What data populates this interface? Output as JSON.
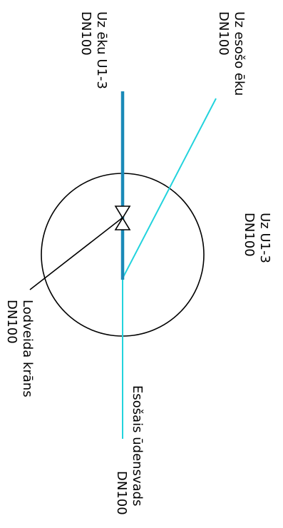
{
  "labels": {
    "existing_building_l1": "Uz esošo ēku",
    "existing_building_l2": "DN100",
    "to_building_l1": "Uz ēku U1-3",
    "to_building_l2": "DN100",
    "to_u_l1": "Uz U1-3",
    "to_u_l2": "DN100",
    "valve_l1": "Lodveida krāns",
    "valve_l2": "DN100",
    "water_main_l1": "Esošais ūdensvads",
    "water_main_l2": "DN100"
  },
  "colors": {
    "new_pipe": "#1a8ab8",
    "existing_pipe": "#22d3dd",
    "linework": "#000000"
  }
}
